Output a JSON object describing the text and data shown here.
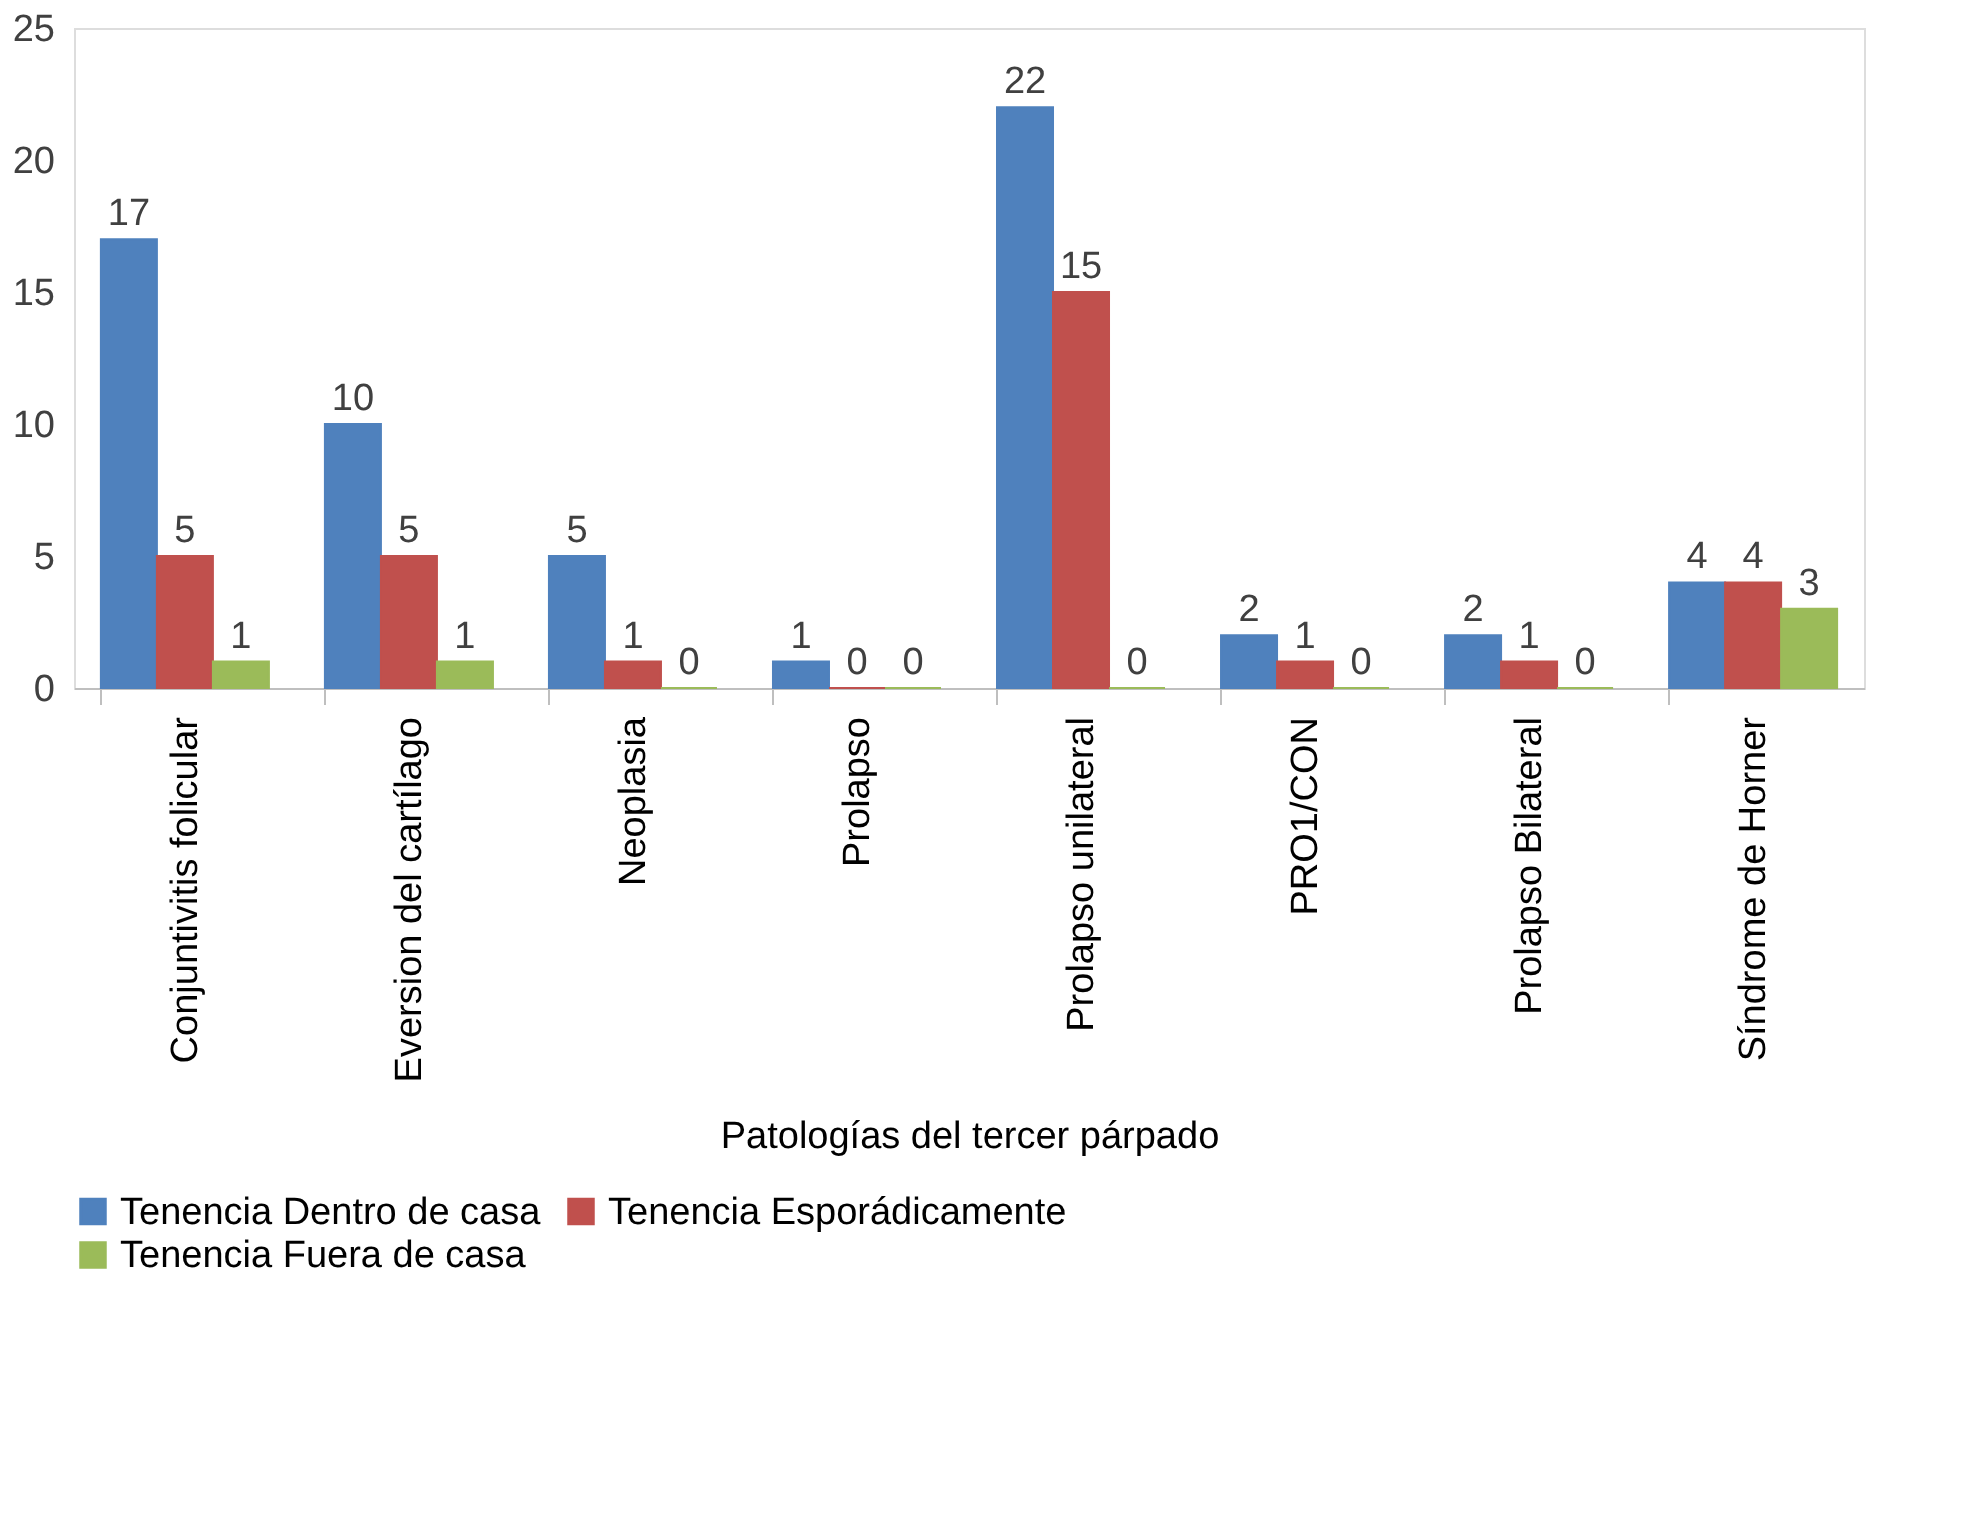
{
  "chart_data": {
    "type": "bar",
    "xlabel": "Patologías del tercer párpado",
    "categories": [
      "Conjuntivitis folicular",
      "Eversion del cartílago",
      "Neoplasia",
      "Prolapso",
      "Prolapso unilateral",
      "PRO1/CON",
      "Prolapso Bilateral",
      "Síndrome de Horner"
    ],
    "series": [
      {
        "name": "Tenencia Dentro de casa",
        "color": "#4f81bd",
        "values": [
          17,
          10,
          5,
          1,
          22,
          2,
          2,
          4
        ]
      },
      {
        "name": "Tenencia Esporádicamente",
        "color": "#c0504d",
        "values": [
          5,
          5,
          1,
          0,
          15,
          1,
          1,
          4
        ]
      },
      {
        "name": "Tenencia Fuera de casa",
        "color": "#9bbb59",
        "values": [
          1,
          1,
          0,
          0,
          0,
          0,
          0,
          3
        ]
      }
    ],
    "ylim": [
      0,
      25
    ],
    "yticks": [
      0,
      5,
      10,
      15,
      20,
      25
    ],
    "grid": false,
    "legend": "bottom",
    "data_labels": true
  }
}
